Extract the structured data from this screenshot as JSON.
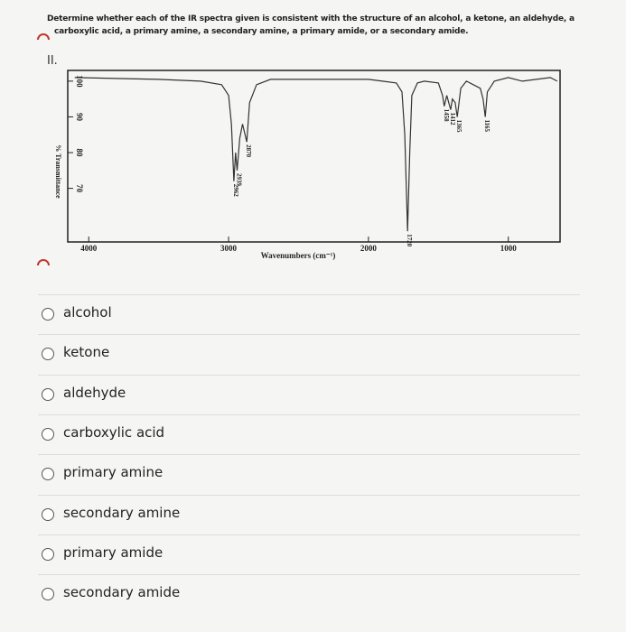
{
  "question": {
    "lines": [
      "Determine whether each of the IR spectra given is consistent with the structure of an alcohol, a ketone, an aldehyde, a",
      "carboxylic acid, a primary amine, a secondary amine, a primary amide, or a secondary amide."
    ],
    "number": "II."
  },
  "chart_data": {
    "type": "line",
    "x_label": "Wavenumbers (cm⁻¹)",
    "y_label": "% Transmittance",
    "xlim": [
      4150,
      630
    ],
    "xticks": [
      4000,
      3000,
      2000,
      1000
    ],
    "ylim": [
      55,
      103
    ],
    "yticks": [
      100,
      90,
      80,
      70
    ],
    "color": "#333333",
    "x": [
      4100,
      3500,
      3200,
      3050,
      3000,
      2980,
      2962,
      2950,
      2939,
      2920,
      2900,
      2870,
      2850,
      2800,
      2700,
      2000,
      1900,
      1800,
      1760,
      1740,
      1720,
      1705,
      1690,
      1650,
      1600,
      1500,
      1470,
      1458,
      1440,
      1412,
      1400,
      1380,
      1365,
      1340,
      1300,
      1250,
      1200,
      1180,
      1165,
      1150,
      1100,
      1000,
      900,
      800,
      700,
      650
    ],
    "values": [
      101,
      100.5,
      100,
      99,
      96,
      88,
      72,
      80,
      75,
      84,
      88,
      83,
      94,
      99,
      100.5,
      100.5,
      100,
      99.5,
      97,
      85,
      58,
      80,
      96,
      99.5,
      100,
      99.5,
      96,
      93,
      96,
      92,
      95,
      94,
      90,
      98,
      100,
      99,
      98,
      95,
      90,
      97,
      100,
      101,
      100,
      100.5,
      101,
      100
    ],
    "annotations": [
      {
        "text": "2962",
        "x": 2962,
        "y": 72
      },
      {
        "text": "2939",
        "x": 2939,
        "y": 75
      },
      {
        "text": "2870",
        "x": 2870,
        "y": 83
      },
      {
        "text": "1720",
        "x": 1720,
        "y": 58
      },
      {
        "text": "1458",
        "x": 1458,
        "y": 93
      },
      {
        "text": "1412",
        "x": 1412,
        "y": 92
      },
      {
        "text": "1365",
        "x": 1365,
        "y": 90
      },
      {
        "text": "1165",
        "x": 1165,
        "y": 90
      }
    ]
  },
  "options": [
    "alcohol",
    "ketone",
    "aldehyde",
    "carboxylic acid",
    "primary amine",
    "secondary amine",
    "primary amide",
    "secondary amide"
  ]
}
